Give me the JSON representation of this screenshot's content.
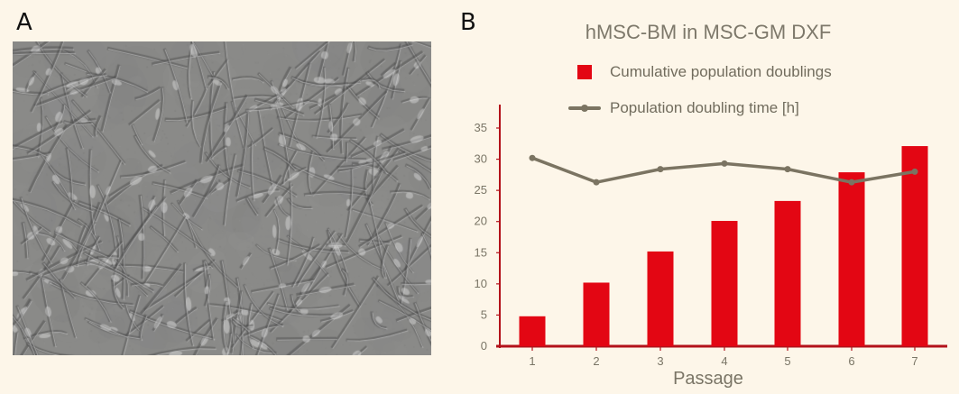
{
  "panels": {
    "a_label": "A",
    "b_label": "B"
  },
  "chart_data": {
    "type": "bar",
    "title": "hMSC-BM in MSC-GM DXF",
    "xlabel": "Passage",
    "ylabel": "",
    "categories": [
      "1",
      "2",
      "3",
      "4",
      "5",
      "6",
      "7"
    ],
    "ylim": [
      0,
      35
    ],
    "yticks": [
      0,
      5,
      10,
      15,
      20,
      25,
      30,
      35
    ],
    "grid": false,
    "legend_position": "top",
    "series": [
      {
        "name": "Cumulative population doublings",
        "type": "bar",
        "color": "#e30613",
        "values": [
          4.8,
          10.2,
          15.2,
          20.1,
          23.3,
          27.9,
          32.1
        ]
      },
      {
        "name": "Population doubling time [h]",
        "type": "line",
        "color": "#7b7462",
        "values": [
          30.2,
          26.3,
          28.4,
          29.3,
          28.4,
          26.3,
          28.0
        ]
      }
    ],
    "axis_color": "#b3121a"
  }
}
